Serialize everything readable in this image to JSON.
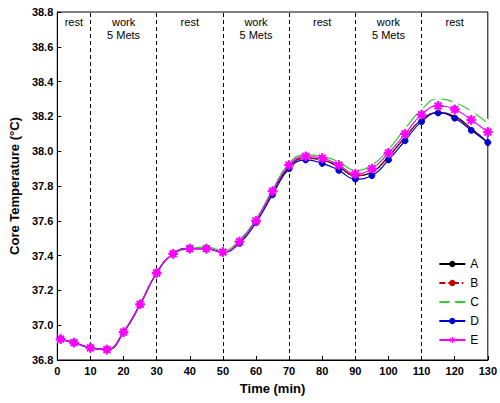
{
  "chart_data": {
    "type": "line",
    "x_label": "Time (min)",
    "y_label": "Core Temperature (°C)",
    "x": [
      1,
      5,
      10,
      15,
      20,
      25,
      30,
      35,
      40,
      45,
      50,
      55,
      60,
      65,
      70,
      75,
      80,
      85,
      90,
      95,
      100,
      105,
      110,
      115,
      120,
      125,
      130
    ],
    "series": [
      {
        "name": "A",
        "color": "#000000",
        "line_style": "solid",
        "marker": "none",
        "values": [
          36.92,
          36.9,
          36.87,
          36.86,
          36.96,
          37.12,
          37.3,
          37.41,
          37.44,
          37.44,
          37.42,
          37.48,
          37.6,
          37.76,
          37.91,
          37.96,
          37.95,
          37.91,
          37.86,
          37.88,
          37.97,
          38.08,
          38.18,
          38.22,
          38.2,
          38.13,
          38.05
        ]
      },
      {
        "name": "B",
        "color": "#c00000",
        "line_style": "dashdot",
        "marker": "none",
        "values": [
          36.92,
          36.9,
          36.87,
          36.86,
          36.96,
          37.12,
          37.3,
          37.41,
          37.44,
          37.44,
          37.42,
          37.48,
          37.6,
          37.76,
          37.91,
          37.96,
          37.95,
          37.91,
          37.86,
          37.88,
          37.97,
          38.08,
          38.18,
          38.22,
          38.2,
          38.13,
          38.05
        ]
      },
      {
        "name": "C",
        "color": "#33cc33",
        "line_style": "solid",
        "marker": "open_triangle",
        "values": [
          36.92,
          36.9,
          36.87,
          36.86,
          36.96,
          37.12,
          37.3,
          37.41,
          37.44,
          37.45,
          37.43,
          37.49,
          37.61,
          37.78,
          37.93,
          37.98,
          37.97,
          37.94,
          37.89,
          37.92,
          38.01,
          38.13,
          38.24,
          38.3,
          38.28,
          38.23,
          38.16
        ]
      },
      {
        "name": "D",
        "color": "#0000cc",
        "line_style": "solid",
        "marker": "circle",
        "values": [
          36.92,
          36.9,
          36.87,
          36.86,
          36.96,
          37.12,
          37.3,
          37.41,
          37.44,
          37.44,
          37.42,
          37.47,
          37.59,
          37.75,
          37.9,
          37.95,
          37.93,
          37.89,
          37.84,
          37.86,
          37.95,
          38.06,
          38.17,
          38.22,
          38.19,
          38.12,
          38.05
        ]
      },
      {
        "name": "E",
        "color": "#ff00ff",
        "line_style": "solid",
        "marker": "asterisk",
        "values": [
          36.92,
          36.9,
          36.87,
          36.86,
          36.96,
          37.12,
          37.3,
          37.41,
          37.44,
          37.44,
          37.42,
          37.48,
          37.6,
          37.77,
          37.92,
          37.97,
          37.96,
          37.92,
          37.87,
          37.9,
          37.99,
          38.1,
          38.21,
          38.26,
          38.24,
          38.18,
          38.11
        ]
      }
    ],
    "xlim": [
      0,
      130
    ],
    "xticks": [
      0,
      10,
      20,
      30,
      40,
      50,
      60,
      70,
      80,
      90,
      100,
      110,
      120,
      130
    ],
    "ylim": [
      36.8,
      38.8
    ],
    "yticks": [
      36.8,
      {
        "value": 37,
        "label": "37.0"
      },
      37.2,
      37.4,
      37.6,
      37.8,
      {
        "value": 38,
        "label": "38.0"
      },
      38.2,
      38.4,
      38.6,
      38.8
    ],
    "phase_boundaries": [
      10,
      30,
      50,
      70,
      90,
      110
    ],
    "phases": [
      {
        "text": "rest",
        "start": 0,
        "end": 10
      },
      {
        "text": "work\n5 Mets",
        "start": 10,
        "end": 30
      },
      {
        "text": "rest",
        "start": 30,
        "end": 50
      },
      {
        "text": "work\n5 Mets",
        "start": 50,
        "end": 70
      },
      {
        "text": "rest",
        "start": 70,
        "end": 90
      },
      {
        "text": "work\n5 Mets",
        "start": 90,
        "end": 110
      },
      {
        "text": "rest",
        "start": 110,
        "end": 130
      }
    ],
    "legend": "lower right",
    "grid": false
  }
}
